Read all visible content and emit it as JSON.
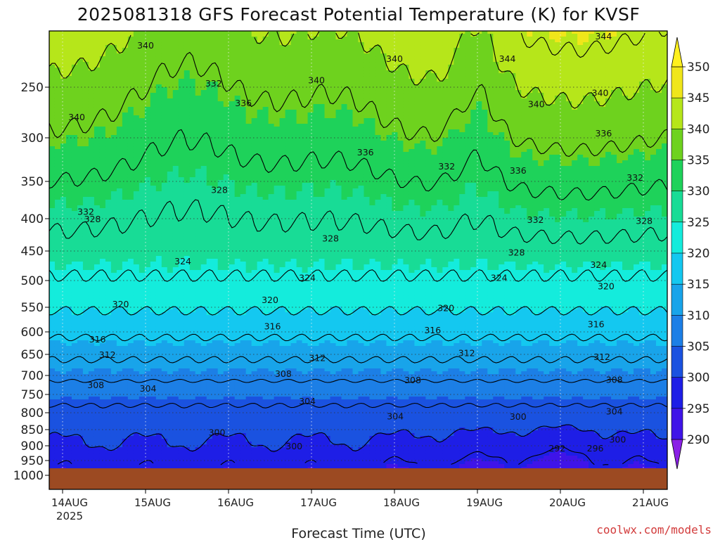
{
  "chart_data": {
    "type": "heatmap",
    "title": "2025081318 GFS Forecast Potential Temperature (K) for KVSF",
    "xlabel": "Forecast Time (UTC)",
    "ylabel": "",
    "x_ticks": [
      "14AUG",
      "15AUG",
      "16AUG",
      "17AUG",
      "18AUG",
      "19AUG",
      "20AUG",
      "21AUG"
    ],
    "x_year": "2025",
    "y_ticks": [
      250,
      300,
      350,
      400,
      450,
      500,
      550,
      600,
      650,
      700,
      750,
      800,
      850,
      900,
      950,
      1000
    ],
    "y_range": [
      1000,
      200
    ],
    "colorbar": {
      "levels": [
        290,
        295,
        300,
        305,
        310,
        315,
        320,
        325,
        330,
        335,
        340,
        345,
        350
      ],
      "labels": [
        "290",
        "295",
        "300",
        "305",
        "310",
        "315",
        "320",
        "325",
        "330",
        "335",
        "340",
        "345",
        "350"
      ],
      "colors": [
        "#8a20e6",
        "#3f14e8",
        "#1e1ee6",
        "#1a52e0",
        "#1c7fe6",
        "#18a4ea",
        "#14c8f0",
        "#14ecdc",
        "#18dc96",
        "#1ed25a",
        "#6ed21e",
        "#b6e61a",
        "#f0e61a",
        "#fff01e"
      ],
      "extend": "both"
    },
    "contour_labels": [
      {
        "value": "340",
        "t": 1.0,
        "p": 213
      },
      {
        "value": "344",
        "t": 6.52,
        "p": 205
      },
      {
        "value": "340",
        "t": 4.0,
        "p": 225
      },
      {
        "value": "344",
        "t": 5.36,
        "p": 225
      },
      {
        "value": "340",
        "t": 3.06,
        "p": 244
      },
      {
        "value": "332",
        "t": 1.82,
        "p": 247
      },
      {
        "value": "340",
        "t": 6.48,
        "p": 256
      },
      {
        "value": "336",
        "t": 2.18,
        "p": 266
      },
      {
        "value": "340",
        "t": 5.71,
        "p": 267
      },
      {
        "value": "340",
        "t": 0.17,
        "p": 280
      },
      {
        "value": "336",
        "t": 6.52,
        "p": 296
      },
      {
        "value": "336",
        "t": 3.65,
        "p": 317
      },
      {
        "value": "332",
        "t": 4.63,
        "p": 333
      },
      {
        "value": "336",
        "t": 5.49,
        "p": 338
      },
      {
        "value": "332",
        "t": 6.9,
        "p": 346
      },
      {
        "value": "328",
        "t": 1.89,
        "p": 362
      },
      {
        "value": "332",
        "t": 0.28,
        "p": 391
      },
      {
        "value": "328",
        "t": 0.36,
        "p": 401
      },
      {
        "value": "332",
        "t": 5.7,
        "p": 402
      },
      {
        "value": "328",
        "t": 7.01,
        "p": 404
      },
      {
        "value": "328",
        "t": 3.23,
        "p": 431
      },
      {
        "value": "328",
        "t": 5.47,
        "p": 453
      },
      {
        "value": "324",
        "t": 1.45,
        "p": 468
      },
      {
        "value": "324",
        "t": 6.46,
        "p": 474
      },
      {
        "value": "324",
        "t": 2.95,
        "p": 496
      },
      {
        "value": "324",
        "t": 5.26,
        "p": 496
      },
      {
        "value": "320",
        "t": 6.55,
        "p": 511
      },
      {
        "value": "320",
        "t": 0.7,
        "p": 545
      },
      {
        "value": "320",
        "t": 2.5,
        "p": 537
      },
      {
        "value": "320",
        "t": 4.62,
        "p": 552
      },
      {
        "value": "316",
        "t": 2.53,
        "p": 589
      },
      {
        "value": "316",
        "t": 4.46,
        "p": 597
      },
      {
        "value": "316",
        "t": 6.43,
        "p": 585
      },
      {
        "value": "316",
        "t": 0.42,
        "p": 617
      },
      {
        "value": "312",
        "t": 0.54,
        "p": 652
      },
      {
        "value": "312",
        "t": 3.07,
        "p": 659
      },
      {
        "value": "312",
        "t": 4.87,
        "p": 648
      },
      {
        "value": "312",
        "t": 6.5,
        "p": 657
      },
      {
        "value": "308",
        "t": 2.66,
        "p": 697
      },
      {
        "value": "308",
        "t": 0.4,
        "p": 726
      },
      {
        "value": "308",
        "t": 4.22,
        "p": 713
      },
      {
        "value": "308",
        "t": 6.65,
        "p": 712
      },
      {
        "value": "304",
        "t": 1.03,
        "p": 735
      },
      {
        "value": "304",
        "t": 2.95,
        "p": 769
      },
      {
        "value": "304",
        "t": 4.01,
        "p": 811
      },
      {
        "value": "304",
        "t": 6.65,
        "p": 797
      },
      {
        "value": "300",
        "t": 5.49,
        "p": 812
      },
      {
        "value": "300",
        "t": 1.86,
        "p": 860
      },
      {
        "value": "300",
        "t": 2.79,
        "p": 902
      },
      {
        "value": "300",
        "t": 6.69,
        "p": 881
      },
      {
        "value": "292",
        "t": 5.96,
        "p": 910
      },
      {
        "value": "296",
        "t": 6.42,
        "p": 910
      }
    ],
    "terrain_pressure": 970,
    "grid": true,
    "legend": "right"
  },
  "credit": "coolwx.com/models"
}
